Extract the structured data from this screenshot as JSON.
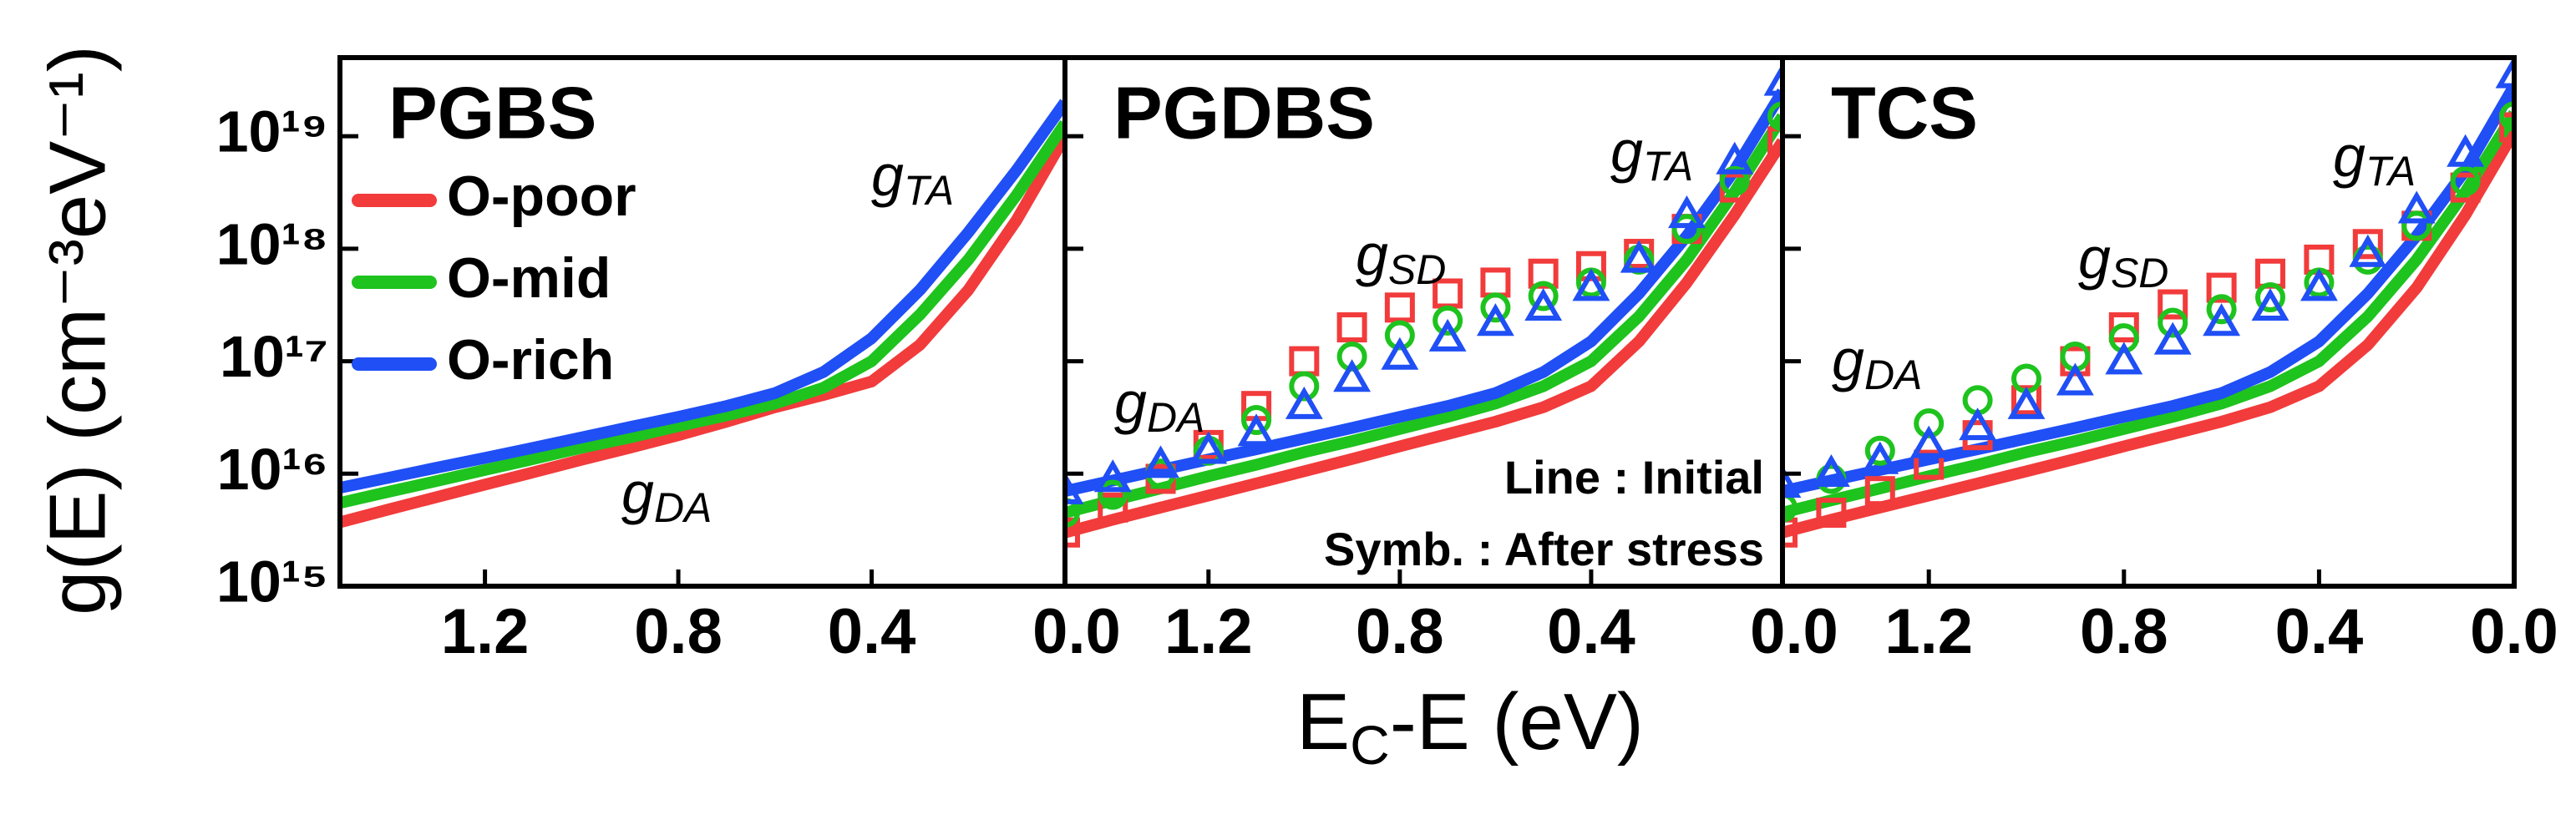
{
  "chart_data": [
    {
      "type": "line",
      "title": "PGBS",
      "ylog": true,
      "legend": "upper left",
      "ylabel": "g(E) (cm⁻³eV⁻¹)",
      "xlabel": {
        "base": "E",
        "sub": "C",
        "rest": "-E (eV)"
      },
      "xlim": [
        1.5,
        0
      ],
      "ylim": [
        1000000000000000.0,
        5e+19
      ],
      "xticks": [
        1.2,
        0.8,
        0.4,
        {
          "value": 0,
          "label": "0.0"
        }
      ],
      "yticks": [
        {
          "value": 1000000000000000.0,
          "label": "10¹⁵"
        },
        {
          "value": 1e+16,
          "label": "10¹⁶"
        },
        {
          "value": 1e+17,
          "label": "10¹⁷"
        },
        {
          "value": 1e+18,
          "label": "10¹⁸"
        },
        {
          "value": 1e+19,
          "label": "10¹⁹"
        }
      ],
      "x": [
        1.5,
        1.4,
        1.3,
        1.2,
        1.1,
        1.0,
        0.9,
        0.8,
        0.7,
        0.6,
        0.5,
        0.4,
        0.3,
        0.2,
        0.1,
        0.0
      ],
      "series": [
        {
          "name": "O-poor",
          "color": "#f23b3b",
          "style": "line",
          "values": [
            3700000000000000.0,
            4800000000000000.0,
            6200000000000000.0,
            8000000000000000.0,
            1.03e+16,
            1.33e+16,
            1.7e+16,
            2.2e+16,
            2.9e+16,
            3.9e+16,
            5e+16,
            6.6e+16,
            1.4e+17,
            4.3e+17,
            1.8e+18,
            1e+19
          ]
        },
        {
          "name": "O-mid",
          "color": "#1ec31e",
          "style": "line",
          "values": [
            5500000000000000.0,
            6900000000000000.0,
            8600000000000000.0,
            1.08e+16,
            1.35e+16,
            1.7e+16,
            2.1e+16,
            2.65e+16,
            3.3e+16,
            4.2e+16,
            5.8e+16,
            1e+17,
            2.6e+17,
            8e+17,
            3e+18,
            1.3e+19
          ]
        },
        {
          "name": "O-rich",
          "color": "#1f4ff5",
          "style": "line",
          "values": [
            7500000000000000.0,
            9200000000000000.0,
            1.13e+16,
            1.38e+16,
            1.7e+16,
            2.1e+16,
            2.6e+16,
            3.2e+16,
            4e+16,
            5.2e+16,
            8e+16,
            1.6e+17,
            4.3e+17,
            1.4e+18,
            5e+18,
            2e+19
          ]
        }
      ],
      "annotations": [
        {
          "base": "g",
          "sub": "TA"
        },
        {
          "base": "g",
          "sub": "DA"
        }
      ]
    },
    {
      "type": "line",
      "title": "PGDBS",
      "ylog": true,
      "xlim": [
        1.5,
        0
      ],
      "ylim": [
        1000000000000000.0,
        5e+19
      ],
      "xticks": [
        1.2,
        0.8,
        0.4,
        {
          "value": 0,
          "label": "0.0"
        }
      ],
      "yticks": [
        1000000000000000.0,
        1e+16,
        1e+17,
        1e+18,
        1e+19
      ],
      "x": [
        1.5,
        1.4,
        1.3,
        1.2,
        1.1,
        1.0,
        0.9,
        0.8,
        0.7,
        0.6,
        0.5,
        0.4,
        0.3,
        0.2,
        0.1,
        0.0
      ],
      "series": [
        {
          "color": "#f23b3b",
          "style": "line",
          "values": [
            3000000000000000.0,
            3900000000000000.0,
            5000000000000000.0,
            6400000000000000.0,
            8200000000000000.0,
            1.05e+16,
            1.35e+16,
            1.75e+16,
            2.25e+16,
            2.9e+16,
            3.9e+16,
            6e+16,
            1.5e+17,
            5e+17,
            2e+18,
            9e+18
          ]
        },
        {
          "color": "#1ec31e",
          "style": "line",
          "values": [
            4500000000000000.0,
            5800000000000000.0,
            7400000000000000.0,
            9500000000000000.0,
            1.2e+16,
            1.55e+16,
            1.95e+16,
            2.5e+16,
            3.2e+16,
            4.2e+16,
            6e+16,
            1e+17,
            2.5e+17,
            8e+17,
            3.2e+18,
            1.5e+19
          ]
        },
        {
          "color": "#1f4ff5",
          "style": "line",
          "values": [
            7000000000000000.0,
            8700000000000000.0,
            1.08e+16,
            1.34e+16,
            1.65e+16,
            2.05e+16,
            2.55e+16,
            3.2e+16,
            4e+16,
            5.2e+16,
            8e+16,
            1.5e+17,
            4e+17,
            1.3e+18,
            5e+18,
            2.5e+19
          ]
        },
        {
          "color": "#f23b3b",
          "style": "square",
          "values": [
            3000000000000000.0,
            5000000000000000.0,
            9000000000000000.0,
            1.8e+16,
            4e+16,
            1e+17,
            2e+17,
            3e+17,
            4e+17,
            5e+17,
            6e+17,
            7e+17,
            9e+17,
            1.5e+18,
            3.5e+18,
            9e+18
          ]
        },
        {
          "color": "#1ec31e",
          "style": "circle",
          "values": [
            4500000000000000.0,
            6500000000000000.0,
            1e+16,
            1.6e+16,
            3e+16,
            6e+16,
            1.1e+17,
            1.7e+17,
            2.3e+17,
            3e+17,
            3.8e+17,
            5e+17,
            8e+17,
            1.5e+18,
            4e+18,
            1.5e+19
          ]
        },
        {
          "color": "#1f4ff5",
          "style": "triangle",
          "values": [
            7000000000000000.0,
            9000000000000000.0,
            1.2e+16,
            1.6e+16,
            2.3e+16,
            4e+16,
            7e+16,
            1.1e+17,
            1.6e+17,
            2.2e+17,
            3e+17,
            4.5e+17,
            8e+17,
            2e+18,
            6e+18,
            3e+19
          ]
        }
      ],
      "annotations": [
        {
          "base": "g",
          "sub": "TA"
        },
        {
          "base": "g",
          "sub": "SD"
        },
        {
          "base": "g",
          "sub": "DA"
        }
      ],
      "notes": [
        "Line : Initial",
        "Symb. : After stress"
      ]
    },
    {
      "type": "line",
      "title": "TCS",
      "ylog": true,
      "xlim": [
        1.5,
        0
      ],
      "ylim": [
        1000000000000000.0,
        5e+19
      ],
      "xticks": [
        1.2,
        0.8,
        0.4,
        {
          "value": 0,
          "label": "0.0"
        }
      ],
      "yticks": [
        1000000000000000.0,
        1e+16,
        1e+17,
        1e+18,
        1e+19
      ],
      "x": [
        1.5,
        1.4,
        1.3,
        1.2,
        1.1,
        1.0,
        0.9,
        0.8,
        0.7,
        0.6,
        0.5,
        0.4,
        0.3,
        0.2,
        0.1,
        0.0
      ],
      "series": [
        {
          "color": "#f23b3b",
          "style": "line",
          "values": [
            3000000000000000.0,
            3900000000000000.0,
            5000000000000000.0,
            6400000000000000.0,
            8200000000000000.0,
            1.05e+16,
            1.35e+16,
            1.75e+16,
            2.25e+16,
            2.9e+16,
            3.9e+16,
            6e+16,
            1.4e+17,
            4.5e+17,
            2e+18,
            1.1e+19
          ]
        },
        {
          "color": "#1ec31e",
          "style": "line",
          "values": [
            4500000000000000.0,
            5800000000000000.0,
            7400000000000000.0,
            9500000000000000.0,
            1.2e+16,
            1.55e+16,
            1.95e+16,
            2.5e+16,
            3.2e+16,
            4.2e+16,
            6e+16,
            1e+17,
            2.5e+17,
            8e+17,
            3.2e+18,
            1.6e+19
          ]
        },
        {
          "color": "#1f4ff5",
          "style": "line",
          "values": [
            7000000000000000.0,
            8700000000000000.0,
            1.08e+16,
            1.34e+16,
            1.65e+16,
            2.05e+16,
            2.55e+16,
            3.2e+16,
            4e+16,
            5.2e+16,
            8e+16,
            1.5e+17,
            4e+17,
            1.3e+18,
            5e+18,
            2.8e+19
          ]
        },
        {
          "color": "#f23b3b",
          "style": "square",
          "values": [
            3000000000000000.0,
            4500000000000000.0,
            7000000000000000.0,
            1.2e+16,
            2.2e+16,
            4.5e+16,
            1e+17,
            2e+17,
            3.2e+17,
            4.5e+17,
            6e+17,
            8e+17,
            1.1e+18,
            1.6e+18,
            3.5e+18,
            1.2e+19
          ]
        },
        {
          "color": "#1ec31e",
          "style": "circle",
          "values": [
            5000000000000000.0,
            9000000000000000.0,
            1.6e+16,
            2.8e+16,
            4.5e+16,
            7e+16,
            1.1e+17,
            1.6e+17,
            2.2e+17,
            2.9e+17,
            3.7e+17,
            5e+17,
            8e+17,
            1.6e+18,
            4e+18,
            1.5e+19
          ]
        },
        {
          "color": "#1f4ff5",
          "style": "triangle",
          "values": [
            8000000000000000.0,
            1e+16,
            1.3e+16,
            1.8e+16,
            2.6e+16,
            4e+16,
            6.5e+16,
            1e+17,
            1.5e+17,
            2.2e+17,
            3e+17,
            4.5e+17,
            9e+17,
            2.2e+18,
            7e+18,
            3.5e+19
          ]
        }
      ],
      "annotations": [
        {
          "base": "g",
          "sub": "TA"
        },
        {
          "base": "g",
          "sub": "SD"
        },
        {
          "base": "g",
          "sub": "DA"
        }
      ]
    }
  ]
}
